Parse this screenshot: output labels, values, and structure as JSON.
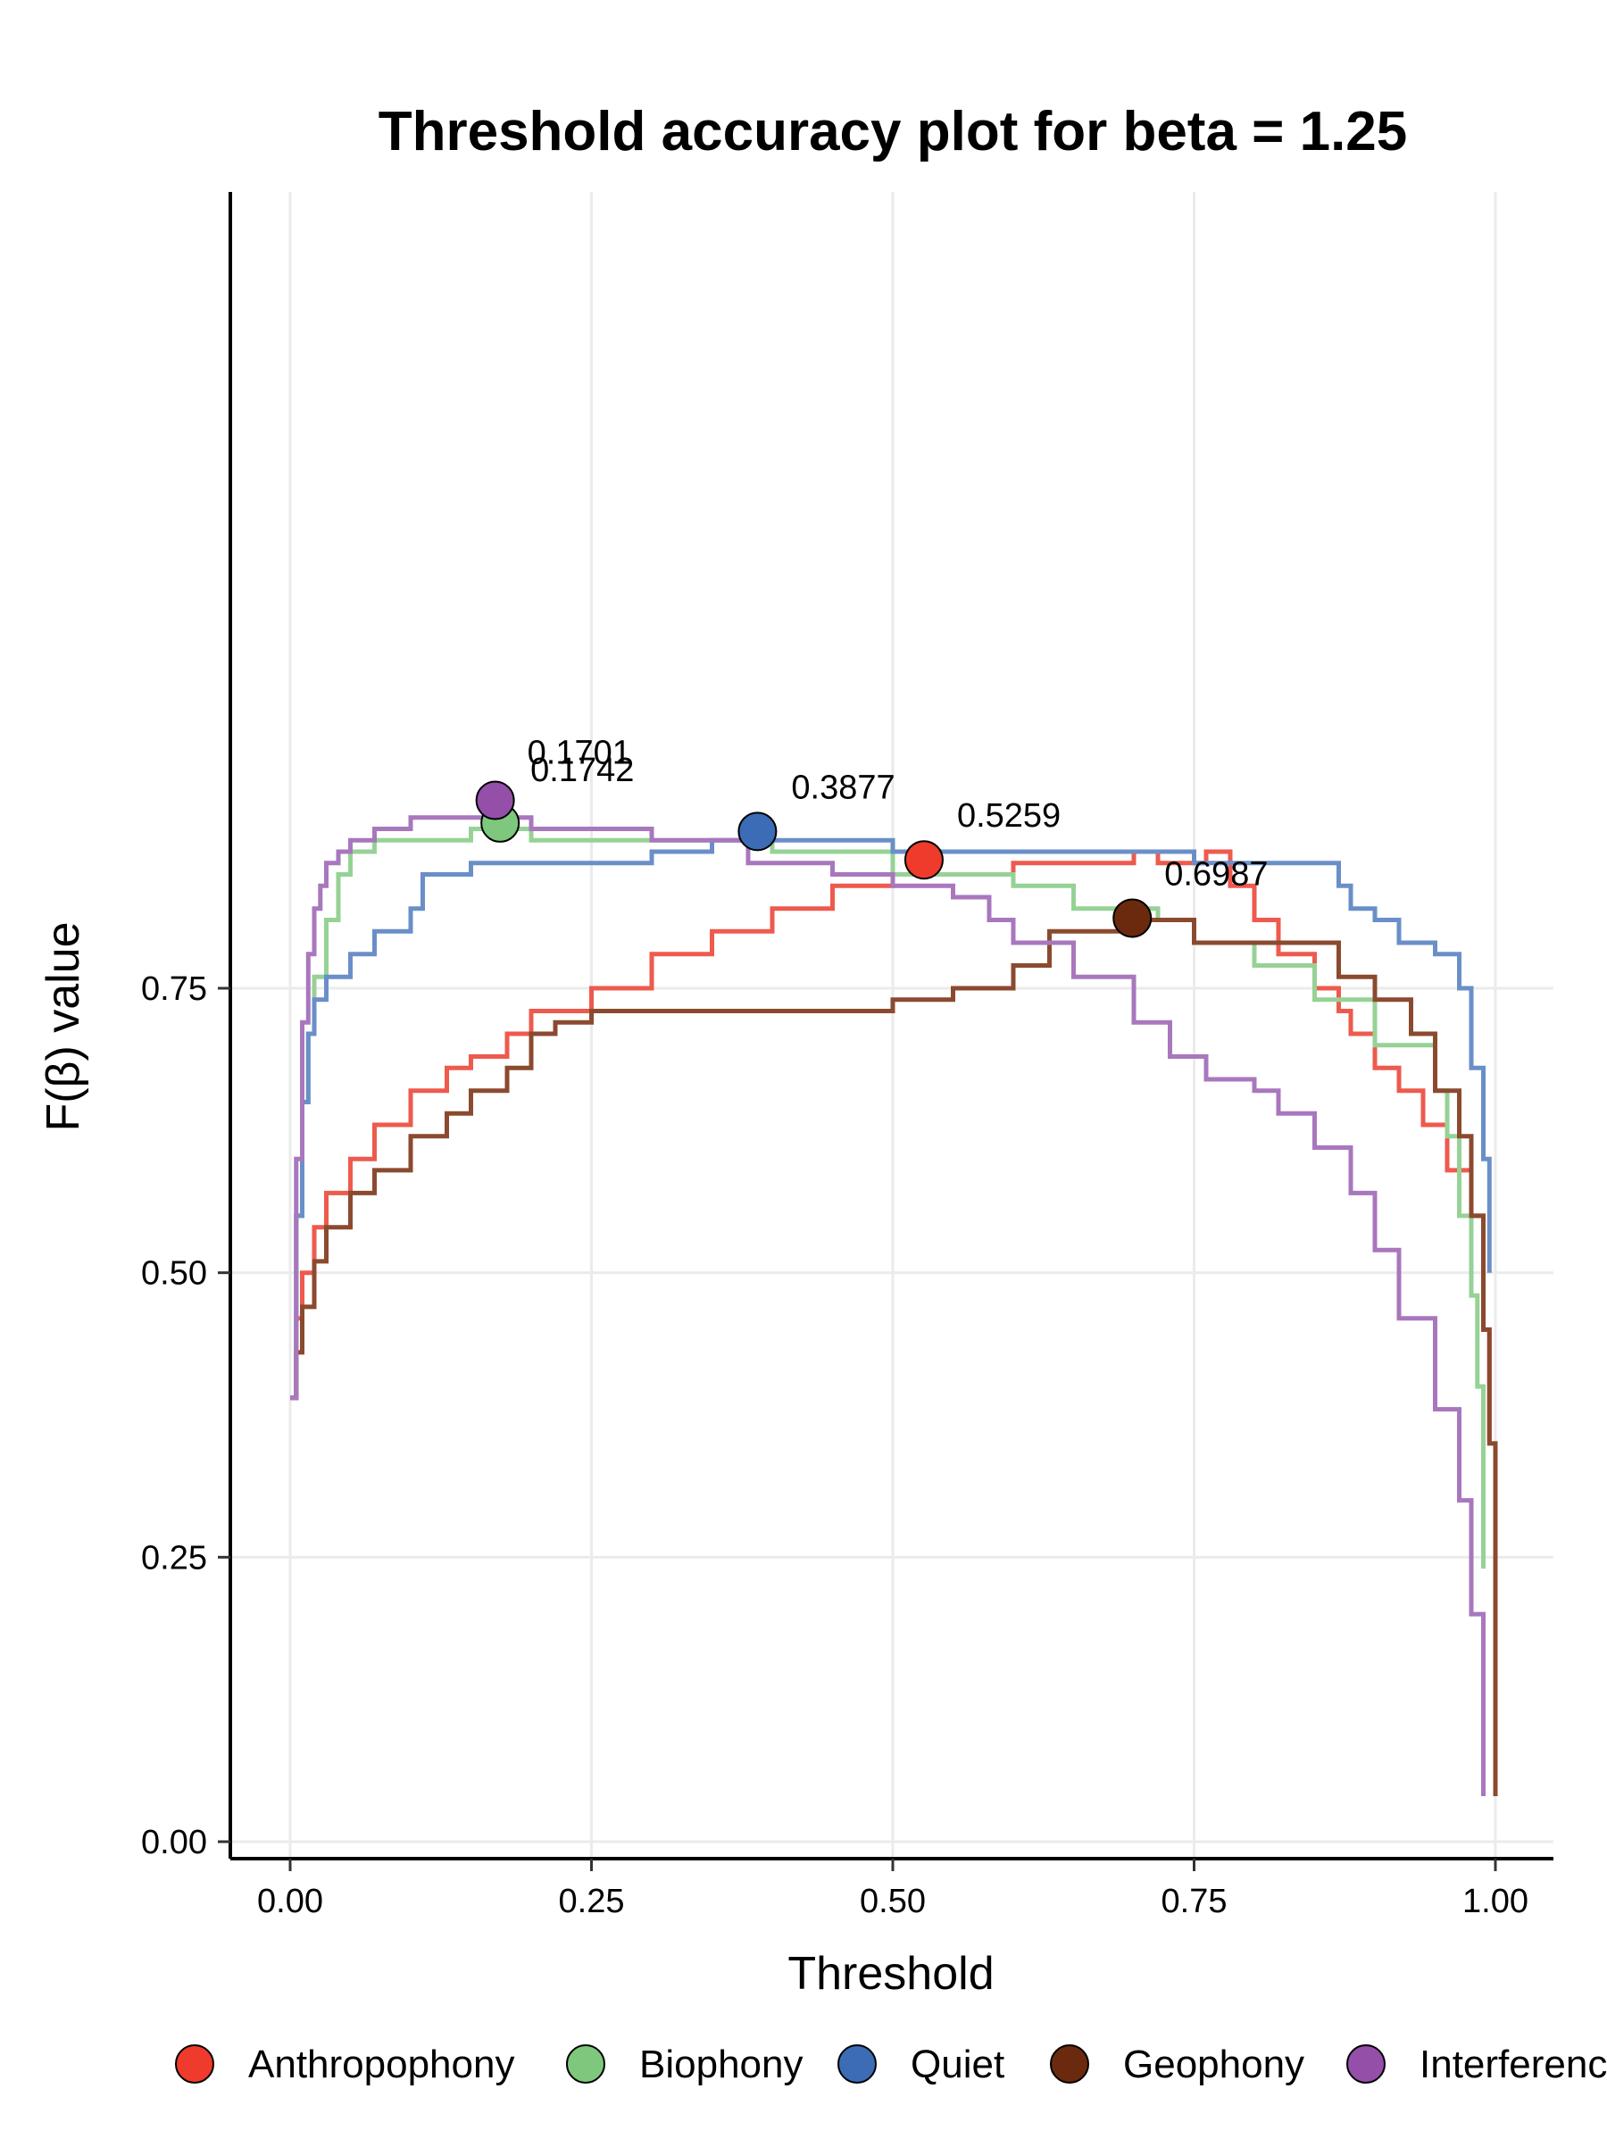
{
  "chart_data": {
    "type": "line",
    "title": "Threshold accuracy plot for beta = 1.25",
    "xlabel": "Threshold",
    "ylabel": "F(β) value",
    "xlim": [
      0,
      1
    ],
    "ylim": [
      0,
      0.95
    ],
    "x_ticks": [
      0,
      0.25,
      0.5,
      0.75,
      1.0
    ],
    "x_tick_labels": [
      "0.00",
      "0.25",
      "0.50",
      "0.75",
      "1.00"
    ],
    "y_ticks": [
      0,
      0.25,
      0.5,
      0.75
    ],
    "y_tick_labels": [
      "0.00",
      "0.25",
      "0.50",
      "0.75"
    ],
    "grid": true,
    "legend_position": "bottom",
    "series": [
      {
        "name": "Anthropophony",
        "line_color": "#ee5a4e",
        "marker_color": "#ee3b2b",
        "x": [
          0.0,
          0.005,
          0.01,
          0.02,
          0.03,
          0.05,
          0.07,
          0.1,
          0.13,
          0.15,
          0.18,
          0.2,
          0.25,
          0.3,
          0.35,
          0.4,
          0.45,
          0.5,
          0.55,
          0.6,
          0.65,
          0.7,
          0.72,
          0.74,
          0.76,
          0.78,
          0.8,
          0.82,
          0.85,
          0.87,
          0.88,
          0.9,
          0.92,
          0.94,
          0.96,
          0.98,
          0.99,
          0.995
        ],
        "y": [
          0.39,
          0.46,
          0.5,
          0.54,
          0.57,
          0.6,
          0.63,
          0.66,
          0.68,
          0.69,
          0.71,
          0.73,
          0.75,
          0.78,
          0.8,
          0.82,
          0.84,
          0.85,
          0.85,
          0.86,
          0.86,
          0.87,
          0.86,
          0.86,
          0.87,
          0.84,
          0.81,
          0.78,
          0.75,
          0.73,
          0.71,
          0.68,
          0.66,
          0.63,
          0.59,
          0.55,
          0.45,
          0.35
        ],
        "optimum": {
          "x": 0.5259,
          "y": 0.8628,
          "label": "0.5259"
        }
      },
      {
        "name": "Biophony",
        "line_color": "#96d296",
        "marker_color": "#7ec87e",
        "x": [
          0.0,
          0.005,
          0.01,
          0.015,
          0.02,
          0.03,
          0.04,
          0.05,
          0.07,
          0.1,
          0.15,
          0.1742,
          0.2,
          0.3,
          0.4,
          0.5,
          0.55,
          0.6,
          0.65,
          0.7,
          0.72,
          0.75,
          0.8,
          0.85,
          0.9,
          0.95,
          0.96,
          0.97,
          0.98,
          0.985,
          0.99
        ],
        "y": [
          0.39,
          0.55,
          0.65,
          0.71,
          0.76,
          0.81,
          0.85,
          0.87,
          0.88,
          0.88,
          0.89,
          0.89,
          0.88,
          0.88,
          0.87,
          0.85,
          0.85,
          0.84,
          0.82,
          0.82,
          0.81,
          0.79,
          0.77,
          0.74,
          0.7,
          0.66,
          0.62,
          0.55,
          0.48,
          0.4,
          0.24
        ],
        "optimum": {
          "x": 0.1742,
          "y": 0.8952,
          "label": "0.1742"
        }
      },
      {
        "name": "Quiet",
        "line_color": "#6a8fc8",
        "marker_color": "#3b6cb5",
        "x": [
          0.0,
          0.005,
          0.01,
          0.015,
          0.02,
          0.03,
          0.05,
          0.07,
          0.1,
          0.11,
          0.15,
          0.25,
          0.3,
          0.35,
          0.3877,
          0.45,
          0.5,
          0.55,
          0.6,
          0.65,
          0.7,
          0.75,
          0.8,
          0.85,
          0.87,
          0.88,
          0.9,
          0.92,
          0.95,
          0.97,
          0.98,
          0.99,
          0.995
        ],
        "y": [
          0.39,
          0.55,
          0.65,
          0.71,
          0.74,
          0.76,
          0.78,
          0.8,
          0.82,
          0.85,
          0.86,
          0.86,
          0.87,
          0.88,
          0.88,
          0.88,
          0.87,
          0.87,
          0.87,
          0.87,
          0.87,
          0.86,
          0.86,
          0.86,
          0.84,
          0.82,
          0.81,
          0.79,
          0.78,
          0.75,
          0.68,
          0.6,
          0.5
        ],
        "optimum": {
          "x": 0.3877,
          "y": 0.8878,
          "label": "0.3877"
        }
      },
      {
        "name": "Geophony",
        "line_color": "#8b4a2f",
        "marker_color": "#6b2a0e",
        "x": [
          0.0,
          0.005,
          0.01,
          0.02,
          0.03,
          0.05,
          0.07,
          0.1,
          0.13,
          0.15,
          0.18,
          0.2,
          0.22,
          0.25,
          0.3,
          0.35,
          0.4,
          0.45,
          0.5,
          0.55,
          0.6,
          0.63,
          0.65,
          0.6987,
          0.72,
          0.75,
          0.8,
          0.85,
          0.87,
          0.9,
          0.93,
          0.95,
          0.97,
          0.98,
          0.99,
          0.995,
          1.0
        ],
        "y": [
          0.39,
          0.43,
          0.47,
          0.51,
          0.54,
          0.57,
          0.59,
          0.62,
          0.64,
          0.66,
          0.68,
          0.71,
          0.72,
          0.73,
          0.73,
          0.73,
          0.73,
          0.73,
          0.74,
          0.75,
          0.77,
          0.8,
          0.8,
          0.81,
          0.81,
          0.79,
          0.79,
          0.79,
          0.76,
          0.74,
          0.71,
          0.66,
          0.62,
          0.55,
          0.45,
          0.35,
          0.04
        ],
        "optimum": {
          "x": 0.6987,
          "y": 0.8116,
          "label": "0.6987"
        }
      },
      {
        "name": "Interference",
        "line_color": "#a877bd",
        "marker_color": "#944fa8",
        "x": [
          0.0,
          0.005,
          0.01,
          0.015,
          0.02,
          0.025,
          0.03,
          0.04,
          0.05,
          0.07,
          0.1,
          0.15,
          0.1701,
          0.2,
          0.3,
          0.38,
          0.4,
          0.45,
          0.5,
          0.55,
          0.58,
          0.6,
          0.65,
          0.7,
          0.73,
          0.76,
          0.8,
          0.82,
          0.85,
          0.88,
          0.9,
          0.92,
          0.95,
          0.97,
          0.98,
          0.99
        ],
        "y": [
          0.39,
          0.6,
          0.72,
          0.78,
          0.82,
          0.84,
          0.86,
          0.87,
          0.88,
          0.89,
          0.9,
          0.9,
          0.9,
          0.89,
          0.88,
          0.86,
          0.86,
          0.85,
          0.84,
          0.83,
          0.81,
          0.79,
          0.76,
          0.72,
          0.69,
          0.67,
          0.66,
          0.64,
          0.61,
          0.57,
          0.52,
          0.46,
          0.38,
          0.3,
          0.2,
          0.04
        ],
        "optimum": {
          "x": 0.1701,
          "y": 0.9151,
          "label": "0.1701"
        }
      }
    ]
  }
}
